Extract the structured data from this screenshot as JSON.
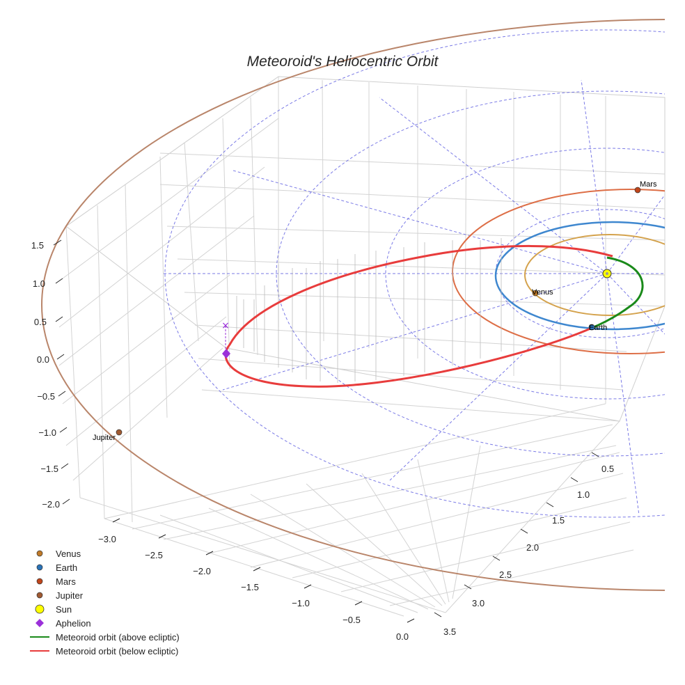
{
  "chart_data": {
    "type": "line",
    "title": "Meteoroid's Heliocentric Orbit",
    "z_ticks": [
      "1.5",
      "1.0",
      "0.5",
      "0.0",
      "−0.5",
      "−1.0",
      "−1.5",
      "−2.0"
    ],
    "x_ticks": [
      "−3.0",
      "−2.5",
      "−2.0",
      "−1.5",
      "−1.0",
      "−0.5",
      "0.0"
    ],
    "y_ticks": [
      "0.5",
      "1.0",
      "1.5",
      "2.0",
      "2.5",
      "3.0",
      "3.5"
    ],
    "planets": [
      {
        "name": "Venus",
        "label": "Venus",
        "color": "#c07a28"
      },
      {
        "name": "Earth",
        "label": "Earth",
        "color": "#2a73b8"
      },
      {
        "name": "Mars",
        "label": "Mars",
        "color": "#c0461b"
      },
      {
        "name": "Jupiter",
        "label": "Jupiter",
        "color": "#a05a32"
      }
    ],
    "orbit_colors": {
      "venus": "#d4a24c",
      "earth": "#3e87cf",
      "mars": "#dd6e46",
      "jupiter": "#b9856a",
      "meteoroid_above": "#1a8a1a",
      "meteoroid_below": "#e83c3c",
      "reference_grid": "#5a5ae0"
    },
    "legend": [
      {
        "label": "Venus",
        "kind": "dot",
        "color": "#c07a28"
      },
      {
        "label": "Earth",
        "kind": "dot",
        "color": "#2a73b8"
      },
      {
        "label": "Mars",
        "kind": "dot",
        "color": "#c0461b"
      },
      {
        "label": "Jupiter",
        "kind": "dot",
        "color": "#a05a32"
      },
      {
        "label": "Sun",
        "kind": "sun",
        "color": "#ffff00"
      },
      {
        "label": "Aphelion",
        "kind": "diamond",
        "color": "#9b30d9"
      },
      {
        "label": "Meteoroid orbit (above ecliptic)",
        "kind": "line",
        "color": "#1a8a1a"
      },
      {
        "label": "Meteoroid orbit (below ecliptic)",
        "kind": "line",
        "color": "#e83c3c"
      }
    ]
  }
}
